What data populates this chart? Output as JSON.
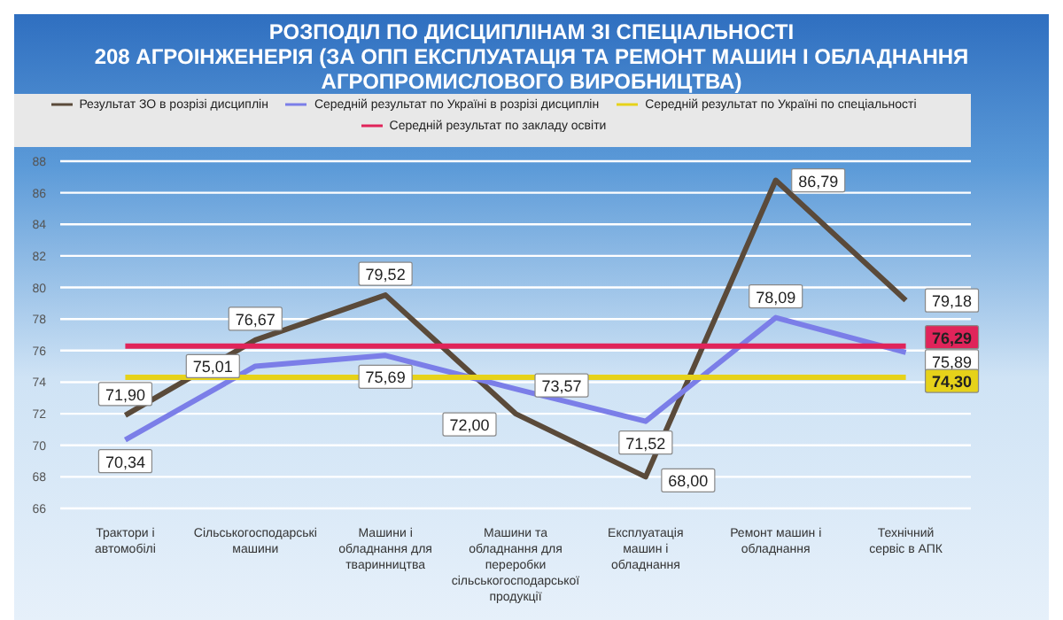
{
  "chart_data": {
    "type": "line",
    "title": "РОЗПОДІЛ ПО ДИСЦИПЛІНАМ ЗІ СПЕЦІАЛЬНОСТІ\n208 АГРОІНЖЕНЕРІЯ (ЗА ОПП ЕКСПЛУАТАЦІЯ ТА РЕМОНТ МАШИН І ОБЛАДНАННЯ\nАГРОПРОМИСЛОВОГО ВИРОБНИЦТВА)",
    "categories": [
      "Трактори і автомобілі",
      "Сільськогосподарські машини",
      "Машини і обладнання для тваринництва",
      "Машини та обладнання для переробки сільськогосподарської продукції",
      "Експлуатація машин і обладнання",
      "Ремонт машин і обладнання",
      "Технічний сервіс в АПК"
    ],
    "series": [
      {
        "name": "Результат ЗО в розрізі дисциплін",
        "color": "#5a4a3a",
        "values": [
          71.9,
          76.67,
          79.52,
          72.0,
          68.0,
          86.79,
          79.18
        ],
        "value_labels": [
          "71,90",
          "76,67",
          "79,52",
          "72,00",
          "68,00",
          "86,79",
          "79,18"
        ]
      },
      {
        "name": "Середній результат по Україні в розрізі дисциплін",
        "color": "#7b7ee8",
        "values": [
          70.34,
          75.01,
          75.69,
          73.57,
          71.52,
          78.09,
          75.89
        ],
        "value_labels": [
          "70,34",
          "75,01",
          "75,69",
          "73,57",
          "71,52",
          "78,09",
          "75,89"
        ]
      },
      {
        "name": "Середній результат по закладу освіти",
        "color": "#e0245a",
        "values": [
          76.29,
          76.29,
          76.29,
          76.29,
          76.29,
          76.29,
          76.29
        ],
        "value_labels": [
          null,
          null,
          null,
          null,
          null,
          null,
          "76,29"
        ]
      },
      {
        "name": "Середній результат по Україні по спеціальності",
        "color": "#e6d21a",
        "values": [
          74.3,
          74.3,
          74.3,
          74.3,
          74.3,
          74.3,
          74.3
        ],
        "value_labels": [
          null,
          null,
          null,
          null,
          null,
          null,
          "74,30"
        ]
      }
    ],
    "ylim": [
      66,
      88
    ],
    "yticks": [
      66,
      68,
      70,
      72,
      74,
      76,
      78,
      80,
      82,
      84,
      86,
      88
    ],
    "grid": "y",
    "legend": "top",
    "marker": "none",
    "line_style": "solid"
  }
}
